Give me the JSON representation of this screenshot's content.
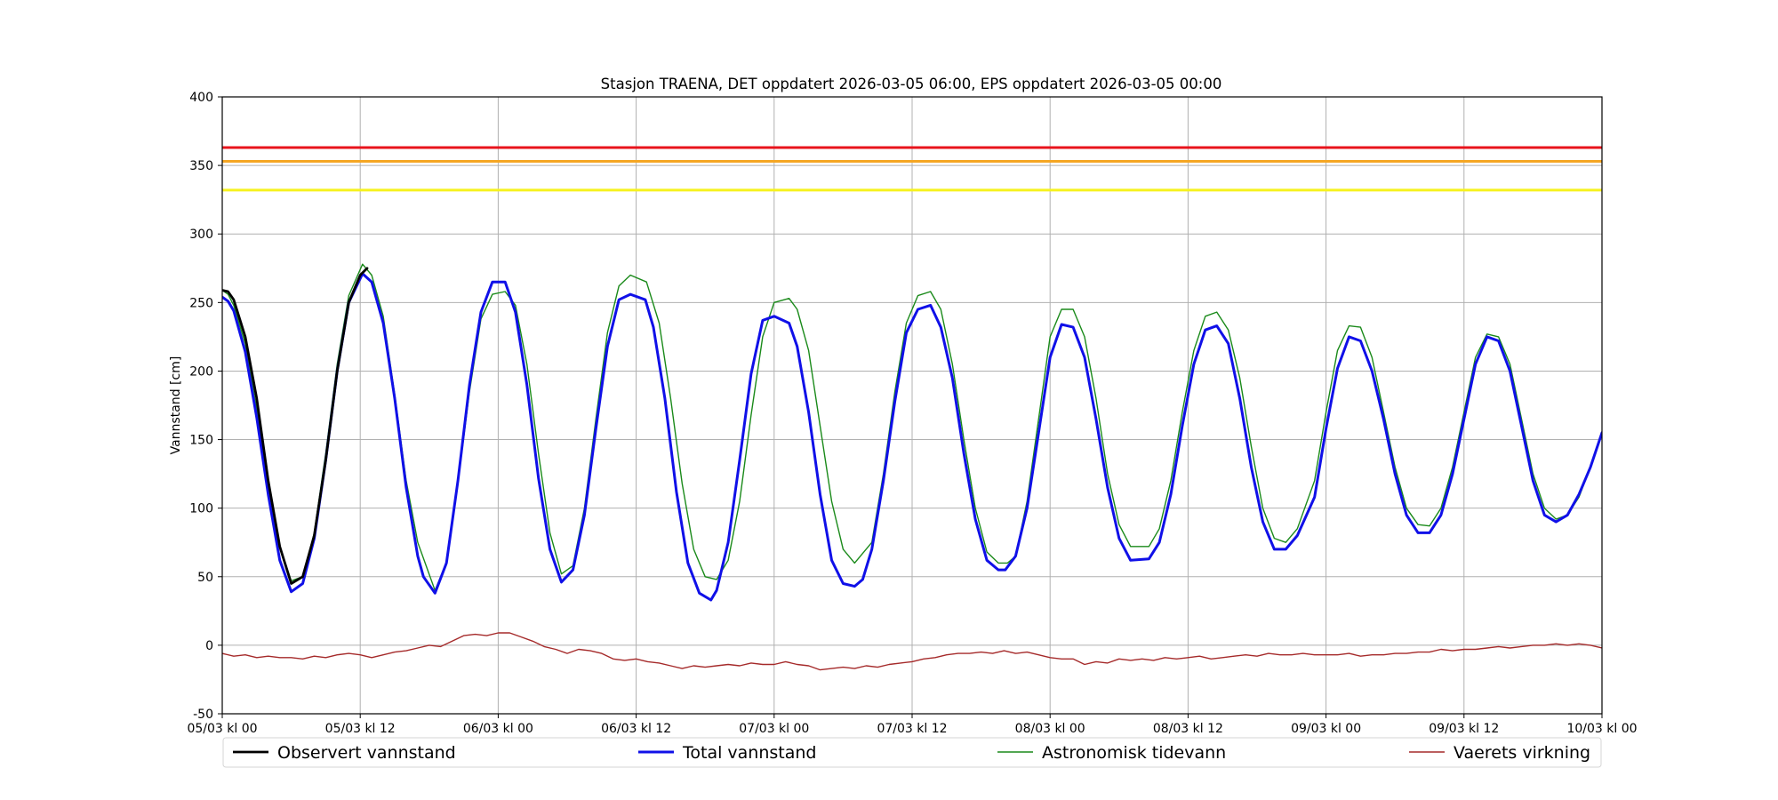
{
  "chart_data": {
    "type": "line",
    "title": "Stasjon TRAENA, DET oppdatert 2026-03-05 06:00, EPS oppdatert 2026-03-05 00:00",
    "xlabel": "",
    "ylabel": "Vannstand [cm]",
    "x_unit": "hours",
    "xlim": [
      0,
      120
    ],
    "ylim": [
      -50,
      400
    ],
    "yticks": [
      -50,
      0,
      50,
      100,
      150,
      200,
      250,
      300,
      350,
      400
    ],
    "xticks": [
      {
        "x": 0,
        "label": "05/03 kl 00"
      },
      {
        "x": 12,
        "label": "05/03 kl 12"
      },
      {
        "x": 24,
        "label": "06/03 kl 00"
      },
      {
        "x": 36,
        "label": "06/03 kl 12"
      },
      {
        "x": 48,
        "label": "07/03 kl 00"
      },
      {
        "x": 60,
        "label": "07/03 kl 12"
      },
      {
        "x": 72,
        "label": "08/03 kl 00"
      },
      {
        "x": 84,
        "label": "08/03 kl 12"
      },
      {
        "x": 96,
        "label": "09/03 kl 00"
      },
      {
        "x": 108,
        "label": "09/03 kl 12"
      },
      {
        "x": 120,
        "label": "10/03 kl 00"
      }
    ],
    "grid": true,
    "legend_position": "bottom",
    "thresholds": [
      {
        "y": 363,
        "color": "#e8141c"
      },
      {
        "y": 353,
        "color": "#f5a623"
      },
      {
        "y": 332,
        "color": "#f6f21f"
      }
    ],
    "series": [
      {
        "name": "Observert vannstand",
        "color": "#000000",
        "width": 2.8,
        "x": [
          0,
          0.5,
          1,
          2,
          3,
          4,
          5,
          6,
          7,
          8,
          9,
          10,
          11,
          12,
          12.6
        ],
        "y": [
          259,
          258,
          252,
          225,
          180,
          120,
          72,
          45,
          50,
          80,
          135,
          200,
          250,
          270,
          275
        ]
      },
      {
        "name": "Total vannstand",
        "color": "#1010e8",
        "width": 3,
        "x": [
          0,
          0.5,
          1,
          2,
          3,
          4,
          5,
          6,
          7,
          8,
          9,
          10,
          11,
          12.2,
          13,
          14,
          15,
          16,
          17,
          17.5,
          18.5,
          19.5,
          20.5,
          21.5,
          22.5,
          23.5,
          24.6,
          25.5,
          26.5,
          27.5,
          28.5,
          29.5,
          30.5,
          31.5,
          32.5,
          33.5,
          34.5,
          35.5,
          36.8,
          37.5,
          38.5,
          39.5,
          40.5,
          41.5,
          42.5,
          43,
          44,
          45,
          46,
          47,
          48,
          49.3,
          50,
          51,
          52,
          53,
          54,
          55,
          55.7,
          56.5,
          57.5,
          58.5,
          59.5,
          60.5,
          61.6,
          62.5,
          63.5,
          64.5,
          65.5,
          66.5,
          67.5,
          68.1,
          69,
          70,
          71,
          72,
          73,
          74,
          75,
          76,
          77,
          78,
          79,
          80.6,
          81.5,
          82.5,
          83.5,
          84.5,
          85.5,
          86.5,
          87.5,
          88.5,
          89.5,
          90.5,
          91.5,
          92.5,
          93.5,
          95,
          96,
          97,
          98,
          99,
          100,
          101,
          102,
          103,
          104,
          105,
          106,
          107,
          108,
          109,
          110,
          111,
          112,
          113,
          114,
          115,
          116,
          117,
          118,
          119,
          120
        ],
        "y": [
          254,
          251,
          244,
          214,
          166,
          110,
          62,
          39,
          45,
          78,
          135,
          200,
          250,
          271,
          265,
          235,
          180,
          115,
          65,
          50,
          38,
          60,
          120,
          190,
          243,
          265,
          265,
          243,
          190,
          122,
          70,
          46,
          55,
          95,
          158,
          218,
          252,
          256,
          252,
          232,
          180,
          112,
          60,
          38,
          33,
          40,
          75,
          135,
          198,
          237,
          240,
          235,
          218,
          170,
          110,
          62,
          45,
          43,
          48,
          70,
          120,
          178,
          228,
          245,
          248,
          232,
          195,
          140,
          92,
          62,
          55,
          55,
          65,
          100,
          155,
          210,
          234,
          232,
          210,
          165,
          115,
          78,
          62,
          63,
          75,
          110,
          160,
          205,
          230,
          233,
          220,
          180,
          130,
          90,
          70,
          70,
          80,
          108,
          158,
          202,
          225,
          222,
          200,
          165,
          125,
          95,
          82,
          82,
          95,
          125,
          165,
          205,
          225,
          222,
          200,
          160,
          120,
          95,
          90,
          95,
          110,
          130,
          155
        ]
      },
      {
        "name": "Astronomisk tidevann",
        "color": "#1a8a1a",
        "width": 1.4,
        "x": [
          0,
          0.5,
          1,
          2,
          3,
          4,
          5,
          6,
          7,
          8,
          9,
          10,
          11,
          12.2,
          13,
          14,
          15,
          16,
          17,
          18.5,
          19.5,
          20.5,
          21.5,
          22.5,
          23.5,
          24.6,
          25.5,
          26.5,
          27.5,
          28.5,
          29.5,
          30.5,
          31.5,
          32.5,
          33.5,
          34.5,
          35.5,
          36.9,
          38,
          39,
          40,
          41,
          42,
          43,
          44,
          45,
          46,
          47,
          48,
          49.3,
          50,
          51,
          52,
          53,
          54,
          55,
          56.5,
          57.5,
          58.5,
          59.5,
          60.5,
          61.6,
          62.5,
          63.5,
          64.5,
          65.5,
          66.5,
          67.5,
          68.3,
          69,
          70,
          71,
          72,
          73,
          74,
          75,
          76,
          77,
          78,
          79,
          80.6,
          81.5,
          82.5,
          83.5,
          84.5,
          85.5,
          86.5,
          87.5,
          88.5,
          89.5,
          90.5,
          91.5,
          92.5,
          93.5,
          95,
          96,
          97,
          98,
          99,
          100,
          101,
          102,
          103,
          104,
          105,
          106,
          107,
          108,
          109,
          110,
          111,
          112,
          113,
          114,
          115,
          116,
          117,
          118,
          119,
          120
        ],
        "y": [
          259,
          256,
          248,
          220,
          172,
          118,
          72,
          47,
          50,
          82,
          140,
          205,
          255,
          278,
          270,
          240,
          183,
          120,
          75,
          40,
          60,
          118,
          185,
          238,
          256,
          258,
          248,
          205,
          140,
          82,
          52,
          58,
          100,
          165,
          228,
          262,
          270,
          265,
          235,
          180,
          118,
          70,
          50,
          48,
          62,
          105,
          168,
          225,
          250,
          253,
          245,
          215,
          160,
          105,
          70,
          60,
          75,
          125,
          185,
          235,
          255,
          258,
          245,
          205,
          150,
          100,
          68,
          60,
          60,
          65,
          105,
          165,
          225,
          245,
          245,
          225,
          180,
          125,
          88,
          72,
          72,
          85,
          120,
          170,
          215,
          240,
          243,
          230,
          195,
          145,
          100,
          78,
          75,
          85,
          120,
          170,
          215,
          233,
          232,
          210,
          170,
          130,
          100,
          88,
          87,
          100,
          130,
          170,
          210,
          227,
          225,
          205,
          165,
          125,
          100,
          92,
          95,
          108,
          130,
          155
        ]
      },
      {
        "name": "Vaerets virkning",
        "color": "#a52a2a",
        "width": 1.4,
        "x": [
          0,
          1,
          2,
          3,
          4,
          5,
          6,
          7,
          8,
          9,
          10,
          11,
          12,
          13,
          14,
          15,
          16,
          17,
          18,
          19,
          20,
          21,
          22,
          23,
          24,
          25,
          26,
          27,
          28,
          29,
          30,
          31,
          32,
          33,
          34,
          35,
          36,
          37,
          38,
          39,
          40,
          41,
          42,
          43,
          44,
          45,
          46,
          47,
          48,
          49,
          50,
          51,
          52,
          53,
          54,
          55,
          56,
          57,
          58,
          59,
          60,
          61,
          62,
          63,
          64,
          65,
          66,
          67,
          68,
          69,
          70,
          71,
          72,
          73,
          74,
          75,
          76,
          77,
          78,
          79,
          80,
          81,
          82,
          83,
          84,
          85,
          86,
          87,
          88,
          89,
          90,
          91,
          92,
          93,
          94,
          95,
          96,
          97,
          98,
          99,
          100,
          101,
          102,
          103,
          104,
          105,
          106,
          107,
          108,
          109,
          110,
          111,
          112,
          113,
          114,
          115,
          116,
          117,
          118,
          119,
          120
        ],
        "y": [
          -6,
          -8,
          -7,
          -9,
          -8,
          -9,
          -9,
          -10,
          -8,
          -9,
          -7,
          -6,
          -7,
          -9,
          -7,
          -5,
          -4,
          -2,
          0,
          -1,
          3,
          7,
          8,
          7,
          9,
          9,
          6,
          3,
          -1,
          -3,
          -6,
          -3,
          -4,
          -6,
          -10,
          -11,
          -10,
          -12,
          -13,
          -15,
          -17,
          -15,
          -16,
          -15,
          -14,
          -15,
          -13,
          -14,
          -14,
          -12,
          -14,
          -15,
          -18,
          -17,
          -16,
          -17,
          -15,
          -16,
          -14,
          -13,
          -12,
          -10,
          -9,
          -7,
          -6,
          -6,
          -5,
          -6,
          -4,
          -6,
          -5,
          -7,
          -9,
          -10,
          -10,
          -14,
          -12,
          -13,
          -10,
          -11,
          -10,
          -11,
          -9,
          -10,
          -9,
          -8,
          -10,
          -9,
          -8,
          -7,
          -8,
          -6,
          -7,
          -7,
          -6,
          -7,
          -7,
          -7,
          -6,
          -8,
          -7,
          -7,
          -6,
          -6,
          -5,
          -5,
          -3,
          -4,
          -3,
          -3,
          -2,
          -1,
          -2,
          -1,
          0,
          0,
          1,
          0,
          1,
          0,
          -2
        ]
      }
    ]
  }
}
